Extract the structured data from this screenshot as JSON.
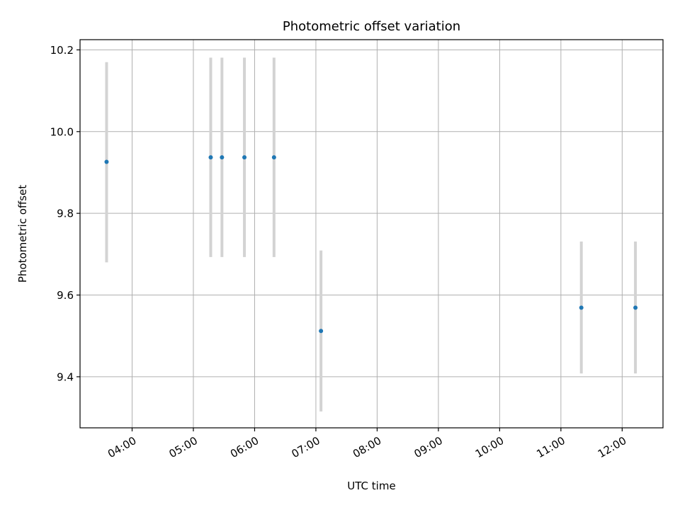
{
  "chart_data": {
    "type": "scatter",
    "title": "Photometric offset variation",
    "xlabel": "UTC time",
    "ylabel": "Photometric offset",
    "x_axis": "time",
    "xlim": [
      "03:09",
      "12:40"
    ],
    "ylim": [
      9.275,
      10.225
    ],
    "yticks": [
      9.4,
      9.6,
      9.8,
      10.0,
      10.2
    ],
    "ytick_labels": [
      "9.4",
      "9.6",
      "9.8",
      "10.0",
      "10.2"
    ],
    "xticks": [
      "04:00",
      "05:00",
      "06:00",
      "07:00",
      "08:00",
      "09:00",
      "10:00",
      "11:00",
      "12:00"
    ],
    "grid": true,
    "point_color": "#1f77b4",
    "errorbar_color": "#d3d3d3",
    "points": [
      {
        "x": "03:35",
        "y": 9.926,
        "ylow": 9.68,
        "yhigh": 10.17
      },
      {
        "x": "05:17",
        "y": 9.937,
        "ylow": 9.693,
        "yhigh": 10.181
      },
      {
        "x": "05:28",
        "y": 9.937,
        "ylow": 9.693,
        "yhigh": 10.181
      },
      {
        "x": "05:50",
        "y": 9.937,
        "ylow": 9.693,
        "yhigh": 10.181
      },
      {
        "x": "06:19",
        "y": 9.937,
        "ylow": 9.693,
        "yhigh": 10.181
      },
      {
        "x": "07:05",
        "y": 9.512,
        "ylow": 9.315,
        "yhigh": 9.709
      },
      {
        "x": "11:20",
        "y": 9.569,
        "ylow": 9.408,
        "yhigh": 9.731
      },
      {
        "x": "12:13",
        "y": 9.569,
        "ylow": 9.408,
        "yhigh": 9.731
      }
    ]
  }
}
